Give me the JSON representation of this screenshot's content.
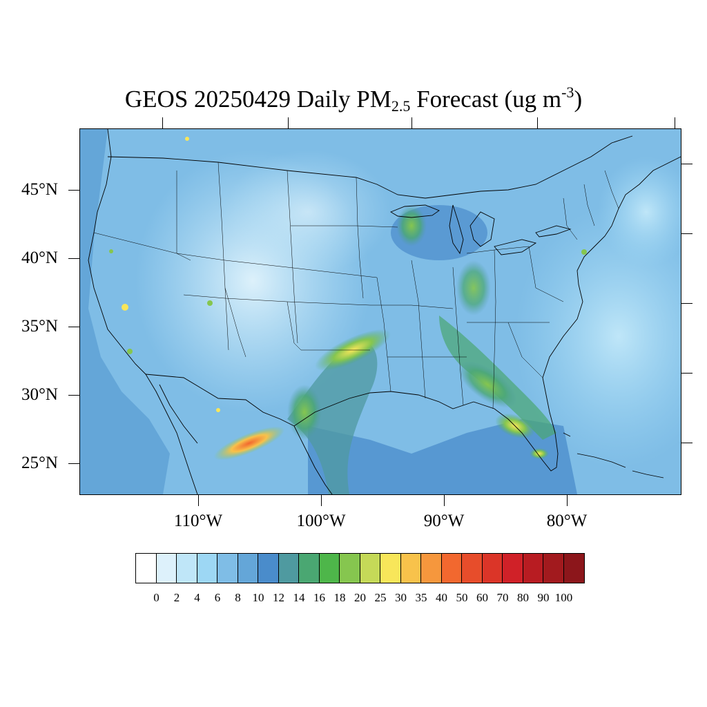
{
  "title": {
    "prefix": "GEOS 20250429 Daily PM",
    "subscript": "2.5",
    "middle": " Forecast (ug m",
    "superscript": "-3",
    "suffix": ")"
  },
  "latitude_labels": [
    "45°N",
    "40°N",
    "35°N",
    "30°N",
    "25°N"
  ],
  "longitude_labels": [
    "110°W",
    "100°W",
    "90°W",
    "80°W"
  ],
  "colorbar": {
    "labels": [
      "0",
      "2",
      "4",
      "6",
      "8",
      "10",
      "12",
      "14",
      "16",
      "18",
      "20",
      "25",
      "30",
      "35",
      "40",
      "50",
      "60",
      "70",
      "80",
      "90",
      "100"
    ],
    "colors": [
      "#ffffff",
      "#ddf1fb",
      "#bfe6f8",
      "#9dd7f4",
      "#7fbde6",
      "#64a6d8",
      "#4a8ccb",
      "#4f9aa0",
      "#4aa772",
      "#4eb64a",
      "#86c64f",
      "#c5d958",
      "#f8e65a",
      "#f8c24b",
      "#f6973d",
      "#f2682f",
      "#e74d2b",
      "#db3528",
      "#d02128",
      "#b81c22",
      "#a21a1e",
      "#8c161b"
    ]
  },
  "map": {
    "background_color": "#7fbde6",
    "ocean_colors": [
      "#64a6d8",
      "#9dd7f4",
      "#bfe6f8"
    ],
    "hotspot_colors": [
      "#86c64f",
      "#f8e65a",
      "#f2682f"
    ]
  }
}
